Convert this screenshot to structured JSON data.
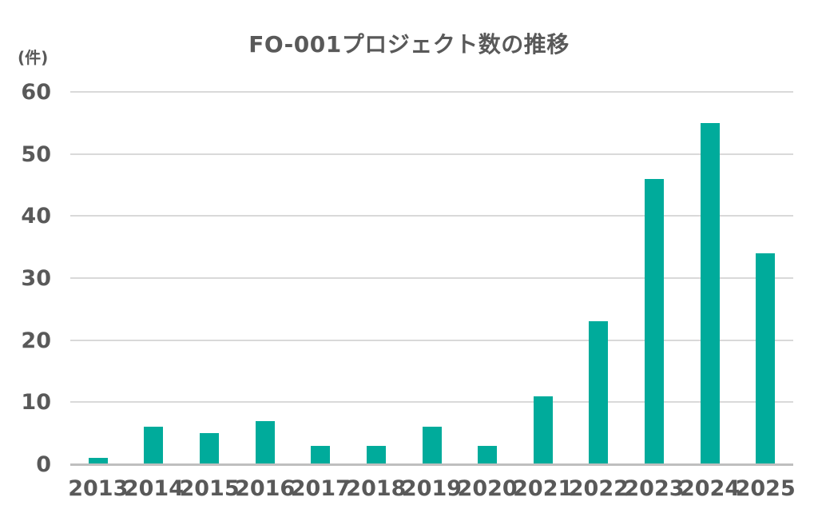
{
  "title": "FO-001プロジェクト数の推移",
  "unit_label": "(件)",
  "colors": {
    "bar": "#00AB9B",
    "gridline": "#D9D9D9",
    "axis_line": "#BFBFBF",
    "text": "#595959",
    "background": "#FFFFFF"
  },
  "chart_data": {
    "type": "bar",
    "title": "FO-001プロジェクト数の推移",
    "categories": [
      "2013",
      "2014",
      "2015",
      "2016",
      "2017",
      "2018",
      "2019",
      "2020",
      "2021",
      "2022",
      "2023",
      "2024",
      "2025"
    ],
    "values": [
      1,
      6,
      5,
      7,
      3,
      3,
      6,
      3,
      11,
      23,
      46,
      55,
      34
    ],
    "xlabel": "",
    "ylabel": "(件)",
    "ylim": [
      0,
      60
    ],
    "yticks": [
      0,
      10,
      20,
      30,
      40,
      50,
      60
    ],
    "grid": true,
    "legend": false
  }
}
